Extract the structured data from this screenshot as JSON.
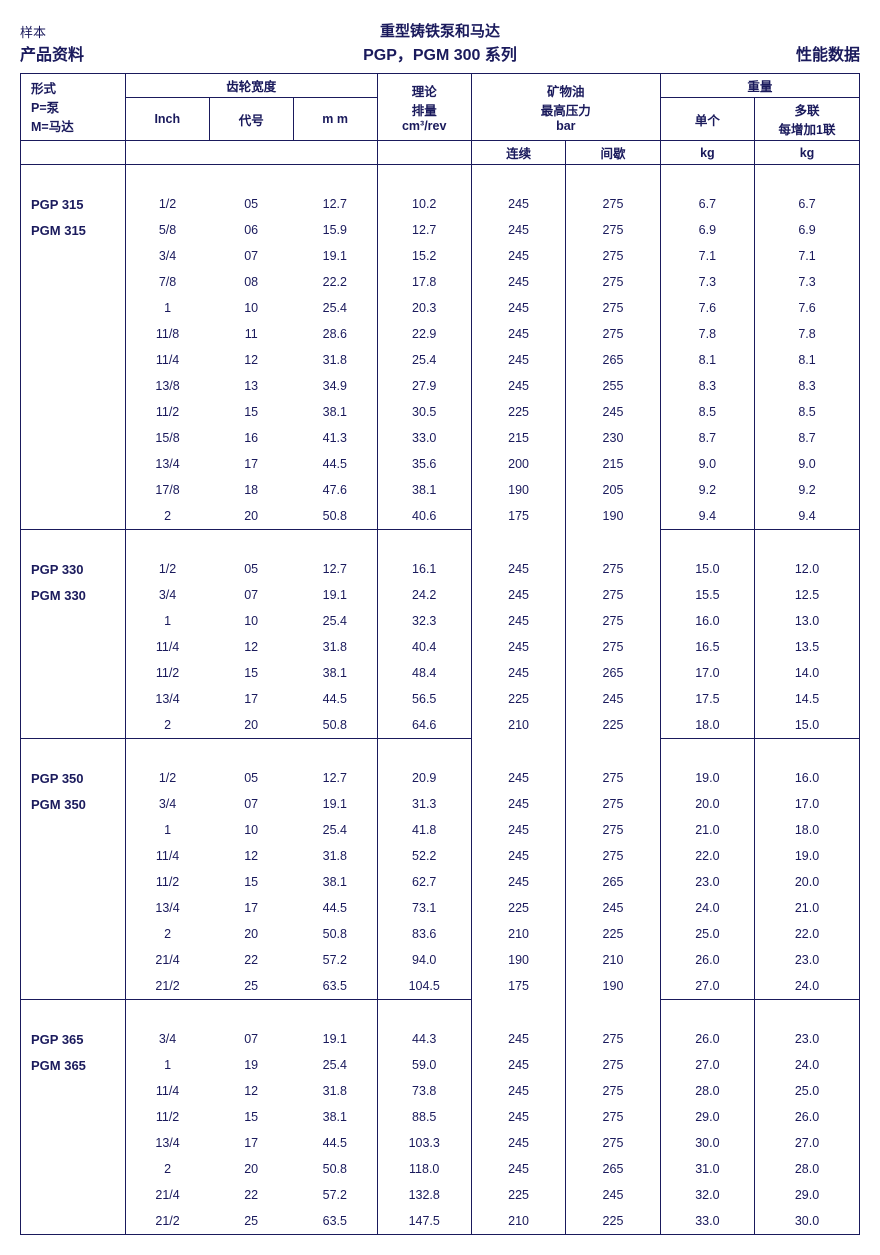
{
  "header": {
    "left_small": "样本",
    "left_bold": "产品资料",
    "center_small": "重型铸铁泵和马达",
    "center_bold": "PGP，PGM 300 系列",
    "right_bold": "性能数据"
  },
  "table": {
    "head": {
      "type_l1": "形式",
      "type_l2": "P=泵",
      "type_l3": "M=马达",
      "gear_width": "齿轮宽度",
      "inch": "Inch",
      "code": "代号",
      "mm": "m m",
      "disp_l1": "理论",
      "disp_l2": "排量",
      "disp_l3": "cm³/rev",
      "oil_l1": "矿物油",
      "oil_l2": "最高压力",
      "oil_l3": "bar",
      "cont": "连续",
      "inter": "间歇",
      "weight": "重量",
      "single": "单个",
      "multi_l1": "多联",
      "multi_l2": "每增加1联",
      "kg": "kg"
    },
    "groups": [
      {
        "labels": [
          "PGP 315",
          "PGM 315"
        ],
        "rows": [
          {
            "inch": "1/2",
            "code": "05",
            "mm": "12.7",
            "disp": "10.2",
            "cont": "245",
            "int": "275",
            "w1": "6.7",
            "w2": "6.7"
          },
          {
            "inch": "5/8",
            "code": "06",
            "mm": "15.9",
            "disp": "12.7",
            "cont": "245",
            "int": "275",
            "w1": "6.9",
            "w2": "6.9"
          },
          {
            "inch": "3/4",
            "code": "07",
            "mm": "19.1",
            "disp": "15.2",
            "cont": "245",
            "int": "275",
            "w1": "7.1",
            "w2": "7.1"
          },
          {
            "inch": "7/8",
            "code": "08",
            "mm": "22.2",
            "disp": "17.8",
            "cont": "245",
            "int": "275",
            "w1": "7.3",
            "w2": "7.3"
          },
          {
            "inch": "1",
            "code": "10",
            "mm": "25.4",
            "disp": "20.3",
            "cont": "245",
            "int": "275",
            "w1": "7.6",
            "w2": "7.6"
          },
          {
            "inch": "11/8",
            "code": "11",
            "mm": "28.6",
            "disp": "22.9",
            "cont": "245",
            "int": "275",
            "w1": "7.8",
            "w2": "7.8"
          },
          {
            "inch": "11/4",
            "code": "12",
            "mm": "31.8",
            "disp": "25.4",
            "cont": "245",
            "int": "265",
            "w1": "8.1",
            "w2": "8.1"
          },
          {
            "inch": "13/8",
            "code": "13",
            "mm": "34.9",
            "disp": "27.9",
            "cont": "245",
            "int": "255",
            "w1": "8.3",
            "w2": "8.3"
          },
          {
            "inch": "11/2",
            "code": "15",
            "mm": "38.1",
            "disp": "30.5",
            "cont": "225",
            "int": "245",
            "w1": "8.5",
            "w2": "8.5"
          },
          {
            "inch": "15/8",
            "code": "16",
            "mm": "41.3",
            "disp": "33.0",
            "cont": "215",
            "int": "230",
            "w1": "8.7",
            "w2": "8.7"
          },
          {
            "inch": "13/4",
            "code": "17",
            "mm": "44.5",
            "disp": "35.6",
            "cont": "200",
            "int": "215",
            "w1": "9.0",
            "w2": "9.0"
          },
          {
            "inch": "17/8",
            "code": "18",
            "mm": "47.6",
            "disp": "38.1",
            "cont": "190",
            "int": "205",
            "w1": "9.2",
            "w2": "9.2"
          },
          {
            "inch": "2",
            "code": "20",
            "mm": "50.8",
            "disp": "40.6",
            "cont": "175",
            "int": "190",
            "w1": "9.4",
            "w2": "9.4"
          }
        ]
      },
      {
        "labels": [
          "PGP 330",
          "PGM 330"
        ],
        "rows": [
          {
            "inch": "1/2",
            "code": "05",
            "mm": "12.7",
            "disp": "16.1",
            "cont": "245",
            "int": "275",
            "w1": "15.0",
            "w2": "12.0"
          },
          {
            "inch": "3/4",
            "code": "07",
            "mm": "19.1",
            "disp": "24.2",
            "cont": "245",
            "int": "275",
            "w1": "15.5",
            "w2": "12.5"
          },
          {
            "inch": "1",
            "code": "10",
            "mm": "25.4",
            "disp": "32.3",
            "cont": "245",
            "int": "275",
            "w1": "16.0",
            "w2": "13.0"
          },
          {
            "inch": "11/4",
            "code": "12",
            "mm": "31.8",
            "disp": "40.4",
            "cont": "245",
            "int": "275",
            "w1": "16.5",
            "w2": "13.5"
          },
          {
            "inch": "11/2",
            "code": "15",
            "mm": "38.1",
            "disp": "48.4",
            "cont": "245",
            "int": "265",
            "w1": "17.0",
            "w2": "14.0"
          },
          {
            "inch": "13/4",
            "code": "17",
            "mm": "44.5",
            "disp": "56.5",
            "cont": "225",
            "int": "245",
            "w1": "17.5",
            "w2": "14.5"
          },
          {
            "inch": "2",
            "code": "20",
            "mm": "50.8",
            "disp": "64.6",
            "cont": "210",
            "int": "225",
            "w1": "18.0",
            "w2": "15.0"
          }
        ]
      },
      {
        "labels": [
          "PGP 350",
          "PGM 350"
        ],
        "rows": [
          {
            "inch": "1/2",
            "code": "05",
            "mm": "12.7",
            "disp": "20.9",
            "cont": "245",
            "int": "275",
            "w1": "19.0",
            "w2": "16.0"
          },
          {
            "inch": "3/4",
            "code": "07",
            "mm": "19.1",
            "disp": "31.3",
            "cont": "245",
            "int": "275",
            "w1": "20.0",
            "w2": "17.0"
          },
          {
            "inch": "1",
            "code": "10",
            "mm": "25.4",
            "disp": "41.8",
            "cont": "245",
            "int": "275",
            "w1": "21.0",
            "w2": "18.0"
          },
          {
            "inch": "11/4",
            "code": "12",
            "mm": "31.8",
            "disp": "52.2",
            "cont": "245",
            "int": "275",
            "w1": "22.0",
            "w2": "19.0"
          },
          {
            "inch": "11/2",
            "code": "15",
            "mm": "38.1",
            "disp": "62.7",
            "cont": "245",
            "int": "265",
            "w1": "23.0",
            "w2": "20.0"
          },
          {
            "inch": "13/4",
            "code": "17",
            "mm": "44.5",
            "disp": "73.1",
            "cont": "225",
            "int": "245",
            "w1": "24.0",
            "w2": "21.0"
          },
          {
            "inch": "2",
            "code": "20",
            "mm": "50.8",
            "disp": "83.6",
            "cont": "210",
            "int": "225",
            "w1": "25.0",
            "w2": "22.0"
          },
          {
            "inch": "21/4",
            "code": "22",
            "mm": "57.2",
            "disp": "94.0",
            "cont": "190",
            "int": "210",
            "w1": "26.0",
            "w2": "23.0"
          },
          {
            "inch": "21/2",
            "code": "25",
            "mm": "63.5",
            "disp": "104.5",
            "cont": "175",
            "int": "190",
            "w1": "27.0",
            "w2": "24.0"
          }
        ]
      },
      {
        "labels": [
          "PGP 365",
          "PGM 365"
        ],
        "rows": [
          {
            "inch": "3/4",
            "code": "07",
            "mm": "19.1",
            "disp": "44.3",
            "cont": "245",
            "int": "275",
            "w1": "26.0",
            "w2": "23.0"
          },
          {
            "inch": "1",
            "code": "19",
            "mm": "25.4",
            "disp": "59.0",
            "cont": "245",
            "int": "275",
            "w1": "27.0",
            "w2": "24.0"
          },
          {
            "inch": "11/4",
            "code": "12",
            "mm": "31.8",
            "disp": "73.8",
            "cont": "245",
            "int": "275",
            "w1": "28.0",
            "w2": "25.0"
          },
          {
            "inch": "11/2",
            "code": "15",
            "mm": "38.1",
            "disp": "88.5",
            "cont": "245",
            "int": "275",
            "w1": "29.0",
            "w2": "26.0"
          },
          {
            "inch": "13/4",
            "code": "17",
            "mm": "44.5",
            "disp": "103.3",
            "cont": "245",
            "int": "275",
            "w1": "30.0",
            "w2": "27.0"
          },
          {
            "inch": "2",
            "code": "20",
            "mm": "50.8",
            "disp": "118.0",
            "cont": "245",
            "int": "265",
            "w1": "31.0",
            "w2": "28.0"
          },
          {
            "inch": "21/4",
            "code": "22",
            "mm": "57.2",
            "disp": "132.8",
            "cont": "225",
            "int": "245",
            "w1": "32.0",
            "w2": "29.0"
          },
          {
            "inch": "21/2",
            "code": "25",
            "mm": "63.5",
            "disp": "147.5",
            "cont": "210",
            "int": "225",
            "w1": "33.0",
            "w2": "30.0"
          }
        ]
      }
    ]
  }
}
